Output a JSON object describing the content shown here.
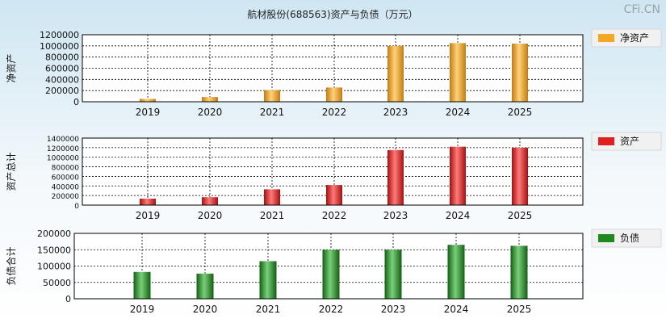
{
  "title": "航材股份(688563)资产与负债（万元）",
  "watermark": "CFi.CN",
  "chart_data": [
    {
      "type": "bar",
      "categories": [
        "2019",
        "2020",
        "2021",
        "2022",
        "2023",
        "2024",
        "2025"
      ],
      "series": [
        {
          "name": "净资产",
          "values": [
            50000,
            85000,
            210000,
            255000,
            1000000,
            1050000,
            1040000
          ]
        }
      ],
      "ylabel": "净资产",
      "ylim": [
        0,
        1200000
      ],
      "yticks": [
        0,
        200000,
        400000,
        600000,
        800000,
        1000000,
        1200000
      ],
      "legend_position": "right",
      "color": "#f5a623",
      "grid": true
    },
    {
      "type": "bar",
      "categories": [
        "2019",
        "2020",
        "2021",
        "2022",
        "2023",
        "2024",
        "2025"
      ],
      "series": [
        {
          "name": "资产",
          "values": [
            135000,
            165000,
            330000,
            420000,
            1150000,
            1220000,
            1200000
          ]
        }
      ],
      "ylabel": "资产总计",
      "ylim": [
        0,
        1400000
      ],
      "yticks": [
        0,
        200000,
        400000,
        600000,
        800000,
        1000000,
        1200000,
        1400000
      ],
      "legend_position": "right",
      "color": "#e02020",
      "grid": true
    },
    {
      "type": "bar",
      "categories": [
        "2019",
        "2020",
        "2021",
        "2022",
        "2023",
        "2024",
        "2025"
      ],
      "series": [
        {
          "name": "负债",
          "values": [
            82000,
            77000,
            115000,
            150000,
            150000,
            165000,
            162000
          ]
        }
      ],
      "ylabel": "负债合计",
      "ylim": [
        0,
        200000
      ],
      "yticks": [
        0,
        50000,
        100000,
        150000,
        200000
      ],
      "legend_position": "right",
      "color": "#1e8a1e",
      "grid": true
    }
  ]
}
